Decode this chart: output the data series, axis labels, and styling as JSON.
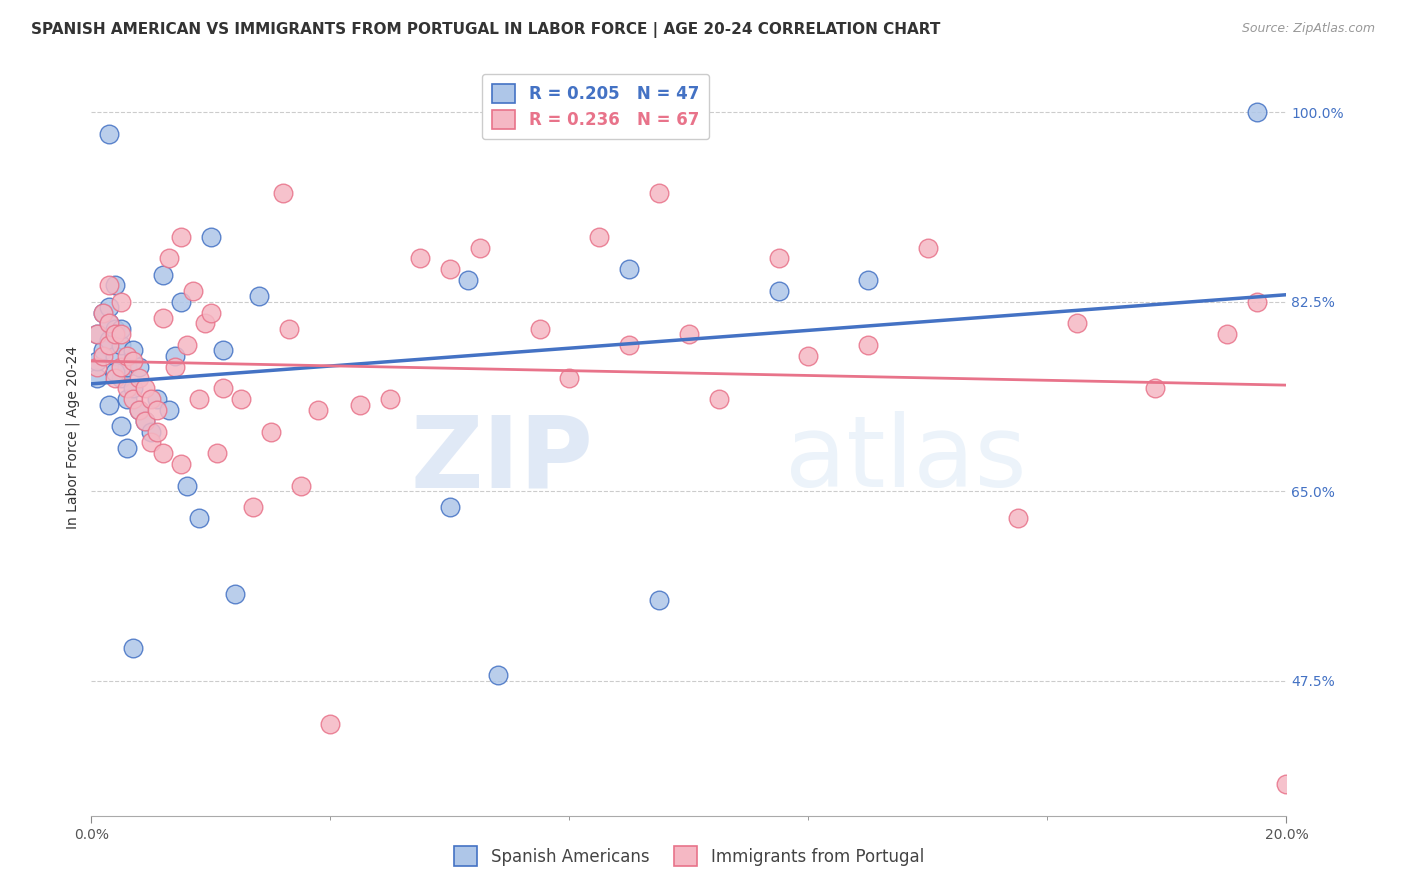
{
  "title": "SPANISH AMERICAN VS IMMIGRANTS FROM PORTUGAL IN LABOR FORCE | AGE 20-24 CORRELATION CHART",
  "source": "Source: ZipAtlas.com",
  "ylabel": "In Labor Force | Age 20-24",
  "xlim": [
    0.0,
    0.2
  ],
  "ylim": [
    0.35,
    1.05
  ],
  "yticks_right": [
    0.475,
    0.65,
    0.825,
    1.0
  ],
  "yticklabels_right": [
    "47.5%",
    "65.0%",
    "82.5%",
    "100.0%"
  ],
  "blue_R": 0.205,
  "blue_N": 47,
  "pink_R": 0.236,
  "pink_N": 67,
  "blue_scatter_x": [
    0.001,
    0.001,
    0.001,
    0.002,
    0.002,
    0.003,
    0.003,
    0.003,
    0.003,
    0.004,
    0.004,
    0.004,
    0.005,
    0.005,
    0.005,
    0.006,
    0.006,
    0.007,
    0.007,
    0.008,
    0.008,
    0.009,
    0.01,
    0.011,
    0.012,
    0.013,
    0.014,
    0.015,
    0.016,
    0.018,
    0.02,
    0.022,
    0.024,
    0.028,
    0.06,
    0.063,
    0.068,
    0.09,
    0.095,
    0.115,
    0.13,
    0.195,
    0.003,
    0.004,
    0.005,
    0.006,
    0.007
  ],
  "blue_scatter_y": [
    0.755,
    0.77,
    0.795,
    0.78,
    0.815,
    0.79,
    0.805,
    0.82,
    0.98,
    0.775,
    0.8,
    0.84,
    0.755,
    0.785,
    0.8,
    0.735,
    0.765,
    0.745,
    0.78,
    0.725,
    0.765,
    0.715,
    0.705,
    0.735,
    0.85,
    0.725,
    0.775,
    0.825,
    0.655,
    0.625,
    0.885,
    0.78,
    0.555,
    0.83,
    0.635,
    0.845,
    0.48,
    0.855,
    0.55,
    0.835,
    0.845,
    1.0,
    0.73,
    0.76,
    0.71,
    0.69,
    0.505
  ],
  "pink_scatter_x": [
    0.001,
    0.001,
    0.002,
    0.002,
    0.003,
    0.003,
    0.003,
    0.004,
    0.004,
    0.005,
    0.005,
    0.005,
    0.006,
    0.006,
    0.007,
    0.007,
    0.008,
    0.008,
    0.009,
    0.009,
    0.01,
    0.01,
    0.011,
    0.011,
    0.012,
    0.012,
    0.013,
    0.014,
    0.015,
    0.015,
    0.016,
    0.017,
    0.018,
    0.019,
    0.02,
    0.021,
    0.022,
    0.025,
    0.027,
    0.03,
    0.032,
    0.033,
    0.035,
    0.038,
    0.04,
    0.045,
    0.05,
    0.055,
    0.06,
    0.065,
    0.075,
    0.08,
    0.085,
    0.09,
    0.095,
    0.1,
    0.105,
    0.115,
    0.12,
    0.13,
    0.14,
    0.155,
    0.165,
    0.178,
    0.19,
    0.195,
    0.2
  ],
  "pink_scatter_y": [
    0.765,
    0.795,
    0.775,
    0.815,
    0.785,
    0.805,
    0.84,
    0.755,
    0.795,
    0.765,
    0.795,
    0.825,
    0.745,
    0.775,
    0.735,
    0.77,
    0.725,
    0.755,
    0.715,
    0.745,
    0.695,
    0.735,
    0.705,
    0.725,
    0.685,
    0.81,
    0.865,
    0.765,
    0.675,
    0.885,
    0.785,
    0.835,
    0.735,
    0.805,
    0.815,
    0.685,
    0.745,
    0.735,
    0.635,
    0.705,
    0.925,
    0.8,
    0.655,
    0.725,
    0.435,
    0.73,
    0.735,
    0.865,
    0.855,
    0.875,
    0.8,
    0.755,
    0.885,
    0.785,
    0.925,
    0.795,
    0.735,
    0.865,
    0.775,
    0.785,
    0.875,
    0.625,
    0.805,
    0.745,
    0.795,
    0.825,
    0.38
  ],
  "blue_line_color": "#4472C4",
  "pink_line_color": "#E8738A",
  "blue_scatter_facecolor": "#AEC6E8",
  "pink_scatter_facecolor": "#F5B8C4",
  "legend_label_blue": "Spanish Americans",
  "legend_label_pink": "Immigrants from Portugal",
  "watermark_zip": "ZIP",
  "watermark_atlas": "atlas",
  "title_fontsize": 11,
  "source_fontsize": 9,
  "axis_label_fontsize": 10,
  "tick_fontsize": 10,
  "legend_fontsize": 12
}
